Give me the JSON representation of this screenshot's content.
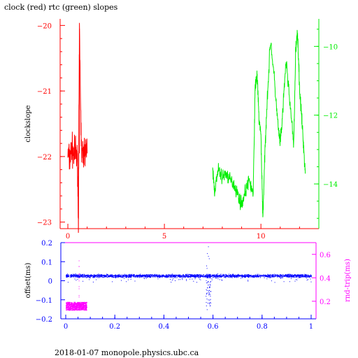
{
  "title": "clock (red) rtc (green) slopes",
  "footer": "2018-01-07  monopole.physics.ubc.ca",
  "colors": {
    "red": "#ff0000",
    "green": "#00ee00",
    "blue": "#0000ff",
    "magenta": "#ff00ff",
    "axis": "#000000"
  },
  "chart_data": [
    {
      "type": "line",
      "title": "clock (red) rtc (green) slopes",
      "ylabel": "clockslope",
      "xlim": [
        -0.4,
        13
      ],
      "ylim_left": [
        -23.1,
        -19.9
      ],
      "ylim_right": [
        -15.3,
        -9.2
      ],
      "x_ticks": [
        0,
        5,
        10
      ],
      "y_ticks_left": [
        -20,
        -21,
        -22,
        -23
      ],
      "y_ticks_right": [
        -10,
        -12,
        -14
      ],
      "series": [
        {
          "name": "clock",
          "color": "red",
          "axis": "left",
          "x": [
            0,
            0.1,
            0.2,
            0.3,
            0.4,
            0.5,
            0.55,
            0.6,
            0.7,
            0.8,
            0.9,
            1.0
          ],
          "y": [
            -21.95,
            -22.05,
            -21.85,
            -22.0,
            -21.9,
            -22.1,
            -22.95,
            -20.05,
            -21.9,
            -22.0,
            -21.85,
            -21.95
          ],
          "spread": 0.35
        },
        {
          "name": "rtc",
          "color": "green",
          "axis": "right",
          "x": [
            7.5,
            7.6,
            7.8,
            8.0,
            8.2,
            8.4,
            8.6,
            8.8,
            9.0,
            9.2,
            9.4,
            9.6,
            9.7,
            9.8,
            9.9,
            10.0,
            10.1,
            10.2,
            10.3,
            10.5,
            10.7,
            10.9,
            11.0,
            11.1,
            11.3,
            11.5,
            11.7,
            11.8,
            11.9,
            12.0,
            12.1,
            12.2,
            12.3
          ],
          "y": [
            -13.6,
            -14.2,
            -13.6,
            -13.8,
            -13.7,
            -13.9,
            -14.0,
            -14.3,
            -14.6,
            -14.2,
            -13.9,
            -14.3,
            -11.2,
            -10.8,
            -12.1,
            -12.6,
            -15.0,
            -13.2,
            -11.8,
            -9.8,
            -11.0,
            -12.4,
            -12.8,
            -12.2,
            -10.4,
            -11.6,
            -12.9,
            -10.1,
            -9.6,
            -11.2,
            -12.0,
            -12.8,
            -13.7
          ],
          "spread": 0.3
        }
      ]
    },
    {
      "type": "scatter",
      "ylabel": "offset(ms)",
      "ylabel_right": "rnd-trip(ms)",
      "xlim": [
        -0.02,
        1.02
      ],
      "ylim_left": [
        -0.2,
        0.2
      ],
      "ylim_right": [
        0.05,
        0.7
      ],
      "x_ticks": [
        0,
        0.2,
        0.4,
        0.6,
        0.8,
        1
      ],
      "y_ticks_left": [
        0.2,
        0.1,
        0,
        -0.1,
        -0.2
      ],
      "y_ticks_right": [
        0.6,
        0.4,
        0.2
      ],
      "series": [
        {
          "name": "offset",
          "color": "blue",
          "axis": "left",
          "x_range": [
            0,
            1
          ],
          "center": 0.027,
          "spread": 0.012,
          "outliers_x": [
            0.575,
            0.58,
            0.585
          ],
          "outliers_y": [
            -0.15,
            0.18,
            -0.12
          ]
        },
        {
          "name": "rnd-trip",
          "color": "magenta",
          "axis": "right",
          "x_range": [
            0,
            0.085
          ],
          "center": 0.16,
          "spread": 0.035,
          "outlier_x": 0.053,
          "outlier_y": 0.65
        }
      ]
    }
  ]
}
